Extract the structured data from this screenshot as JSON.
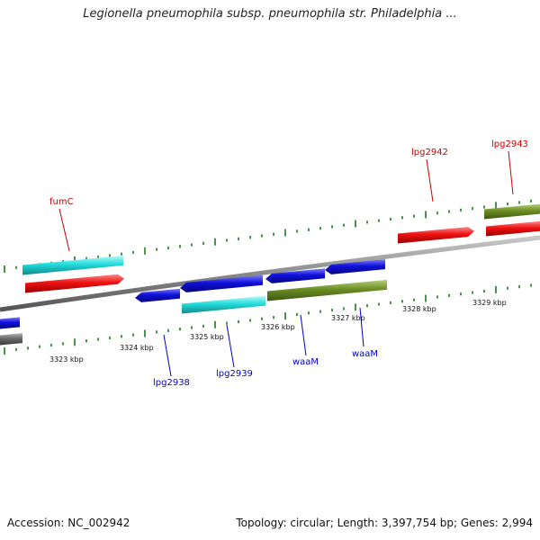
{
  "title": "Legionella pneumophila subsp. pneumophila str. Philadelphia ...",
  "footer": {
    "accession": "Accession: NC_002942",
    "summary": "Topology: circular; Length: 3,397,754 bp; Genes: 2,994"
  },
  "colors": {
    "backbone": "#8a8a8a",
    "tick": "#1a7a1a",
    "label_forward": "#cc0000",
    "label_reverse": "#0000cc",
    "red": "#ee1111",
    "cyan": "#22dddd",
    "olive": "#6b8e23",
    "blue": "#1010dd",
    "gray": "#6a6a6a"
  },
  "scale": {
    "unit": "kbp",
    "ticks": [
      "3323 kbp",
      "3324 kbp",
      "3325 kbp",
      "3326 kbp",
      "3327 kbp",
      "3328 kbp",
      "3329 kbp"
    ]
  },
  "genes": {
    "forward_labeled": [
      {
        "name": "fumC",
        "color": "cyan"
      },
      {
        "name": "lpg2942",
        "color": "red"
      },
      {
        "name": "lpg2943",
        "color": "olive"
      }
    ],
    "reverse_labeled": [
      {
        "name": "lpg2938",
        "color": "blue"
      },
      {
        "name": "lpg2939",
        "color": "cyan"
      },
      {
        "name": "waaM",
        "color": "blue"
      },
      {
        "name": "waaM",
        "color": "blue"
      }
    ]
  }
}
